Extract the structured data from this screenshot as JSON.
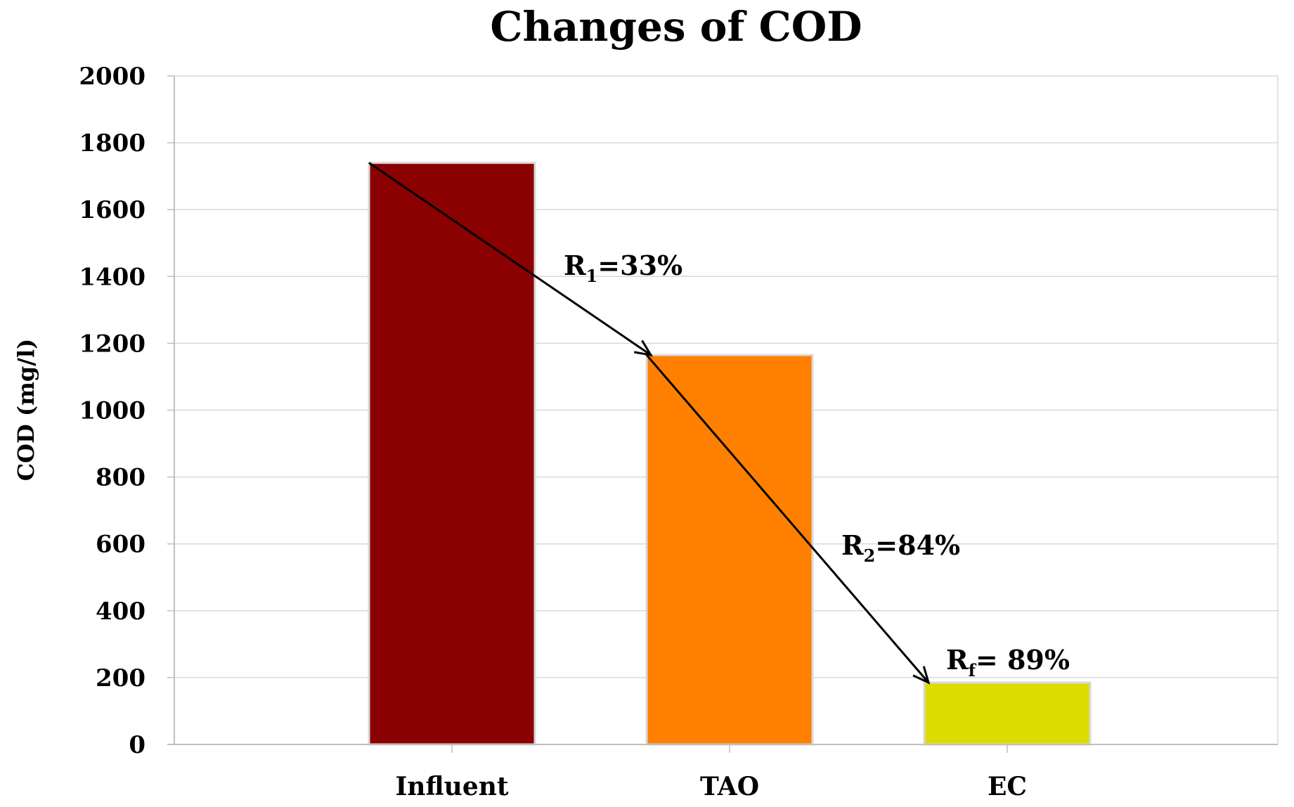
{
  "chart_data": {
    "type": "bar",
    "title": "Changes of COD",
    "xlabel": "",
    "ylabel": "COD (mg/l)",
    "ylim": [
      0,
      2000
    ],
    "yticks": [
      0,
      200,
      400,
      600,
      800,
      1000,
      1200,
      1400,
      1600,
      1800,
      2000
    ],
    "categories": [
      "Influent",
      "TAO",
      "EC"
    ],
    "values": [
      1740,
      1165,
      185
    ],
    "bar_colors": [
      "#8b0000",
      "#ff8000",
      "#dcdc00"
    ],
    "grid": true,
    "annotations": [
      {
        "base": "R",
        "sub": "1",
        "text": "=33%",
        "from_category": "Influent",
        "to_category": "TAO"
      },
      {
        "base": "R",
        "sub": "2",
        "text": "=84%",
        "from_category": "TAO",
        "to_category": "EC"
      },
      {
        "base": "R",
        "sub": "f",
        "text": "= 89%",
        "category": "EC"
      }
    ]
  }
}
